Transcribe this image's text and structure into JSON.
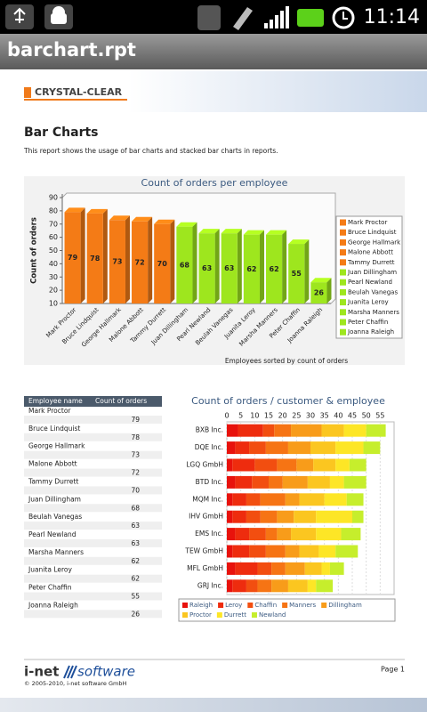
{
  "status_bar": {
    "time": "11:14"
  },
  "app_bar": {
    "title": "barchart.rpt"
  },
  "report": {
    "logo": "CRYSTAL-CLEAR",
    "title": "Bar Charts",
    "description": "This report shows the usage of bar charts and stacked bar charts in reports."
  },
  "chart_data": [
    {
      "type": "bar",
      "title": "Count of orders per employee",
      "y_label": "Count of orders",
      "x_label": "Employees sorted by count of orders",
      "categories": [
        "Mark Proctor",
        "Bruce Lindquist",
        "George Hallmark",
        "Malone Abbott",
        "Tammy Durrett",
        "Juan Dillingham",
        "Pearl Newland",
        "Beulah Vanegas",
        "Juanita Leroy",
        "Marsha Manners",
        "Peter Chaffin",
        "Joanna Raleigh"
      ],
      "values": [
        79,
        78,
        73,
        72,
        70,
        68,
        63,
        63,
        62,
        62,
        55,
        26
      ],
      "colors": [
        "#f47b16",
        "#f47b16",
        "#f47b16",
        "#f47b16",
        "#f47b16",
        "#9ee61e",
        "#9ee61e",
        "#9ee61e",
        "#9ee61e",
        "#9ee61e",
        "#9ee61e",
        "#9ee61e"
      ],
      "ylim": [
        10,
        90
      ],
      "yticks": [
        10,
        20,
        30,
        40,
        50,
        60,
        70,
        80,
        90
      ],
      "legend": "right"
    },
    {
      "type": "stacked_bar",
      "orientation": "horizontal",
      "title": "Count of orders / customer & employee",
      "categories": [
        "BXB Inc.",
        "DQE Inc.",
        "LGQ GmbH",
        "BTD Inc.",
        "MQM Inc.",
        "IHV GmbH",
        "EMS Inc.",
        "TEW GmbH",
        "MFL GmbH",
        "GRJ Inc."
      ],
      "series": [
        {
          "name": "Raleigh",
          "color": "#e8120c",
          "values": [
            4,
            3,
            2,
            3,
            2,
            2,
            3,
            2,
            3,
            2
          ]
        },
        {
          "name": "Leroy",
          "color": "#ee2c0e",
          "values": [
            9,
            5,
            8,
            6,
            5,
            5,
            5,
            6,
            8,
            5
          ]
        },
        {
          "name": "Chaffin",
          "color": "#f24e10",
          "values": [
            4,
            6,
            8,
            6,
            5,
            5,
            6,
            6,
            5,
            4
          ]
        },
        {
          "name": "Manners",
          "color": "#f67414",
          "values": [
            6,
            8,
            7,
            5,
            9,
            6,
            4,
            7,
            5,
            5
          ]
        },
        {
          "name": "Dillingham",
          "color": "#f89c1a",
          "values": [
            11,
            8,
            6,
            9,
            5,
            6,
            5,
            5,
            7,
            6
          ]
        },
        {
          "name": "Proctor",
          "color": "#fbc620",
          "values": [
            8,
            9,
            8,
            8,
            9,
            8,
            9,
            7,
            6,
            7
          ]
        },
        {
          "name": "Durrett",
          "color": "#fde626",
          "values": [
            8,
            10,
            5,
            5,
            8,
            13,
            9,
            6,
            3,
            3
          ]
        },
        {
          "name": "Newland",
          "color": "#c6ee2c",
          "values": [
            7,
            6,
            6,
            8,
            6,
            4,
            7,
            8,
            5,
            6
          ]
        }
      ],
      "xlim": [
        0,
        60
      ],
      "xticks": [
        0,
        5,
        10,
        15,
        20,
        25,
        30,
        35,
        40,
        45,
        50,
        55
      ],
      "grid": true,
      "legend": "bottom"
    }
  ],
  "table": {
    "columns": [
      "Employee name",
      "Count of orders"
    ],
    "rows": [
      [
        "Mark Proctor",
        79
      ],
      [
        "Bruce Lindquist",
        78
      ],
      [
        "George Hallmark",
        73
      ],
      [
        "Malone Abbott",
        72
      ],
      [
        "Tammy Durrett",
        70
      ],
      [
        "Juan Dillingham",
        68
      ],
      [
        "Beulah Vanegas",
        63
      ],
      [
        "Pearl Newland",
        63
      ],
      [
        "Marsha Manners",
        62
      ],
      [
        "Juanita Leroy",
        62
      ],
      [
        "Peter Chaffin",
        55
      ],
      [
        "Joanna Raleigh",
        26
      ]
    ]
  },
  "footer": {
    "brand_left": "i-net",
    "brand_right": "software",
    "copyright": "© 2005-2010, i-net software GmbH",
    "page": "Page 1"
  }
}
